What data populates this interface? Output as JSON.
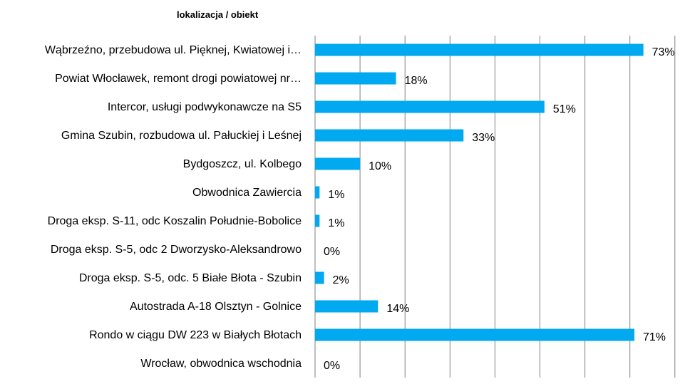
{
  "chart_data": {
    "type": "bar",
    "orientation": "horizontal",
    "title": "",
    "ylabel": "lokalizacja / obiekt",
    "xlabel": "",
    "xlim": [
      0,
      82
    ],
    "grid": true,
    "bar_color": "#00A9F0",
    "categories": [
      "Wąbrzeźno, przebudowa ul. Pięknej, Kwiatowej i…",
      "Powiat Włocławek, remont drogi powiatowej nr…",
      "Intercor, usługi podwykonawcze na S5",
      "Gmina Szubin, rozbudowa ul. Pałuckiej i Leśnej",
      "Bydgoszcz, ul. Kolbego",
      "Obwodnica Zawiercia",
      "Droga eksp. S-11, odc Koszalin Południe-Bobolice",
      "Droga eksp. S-5, odc 2 Dworzysko-Aleksandrowo",
      "Droga eksp. S-5, odc. 5 Białe Błota - Szubin",
      "Autostrada A-18 Olsztyn - Golnice",
      "Rondo w ciągu DW 223 w Białych Błotach",
      "Wrocław, obwodnica wschodnia"
    ],
    "values": [
      73,
      18,
      51,
      33,
      10,
      1,
      1,
      0,
      2,
      14,
      71,
      0
    ],
    "value_labels": [
      "73%",
      "18%",
      "51%",
      "33%",
      "10%",
      "1%",
      "1%",
      "0%",
      "2%",
      "14%",
      "71%",
      "0%"
    ]
  }
}
